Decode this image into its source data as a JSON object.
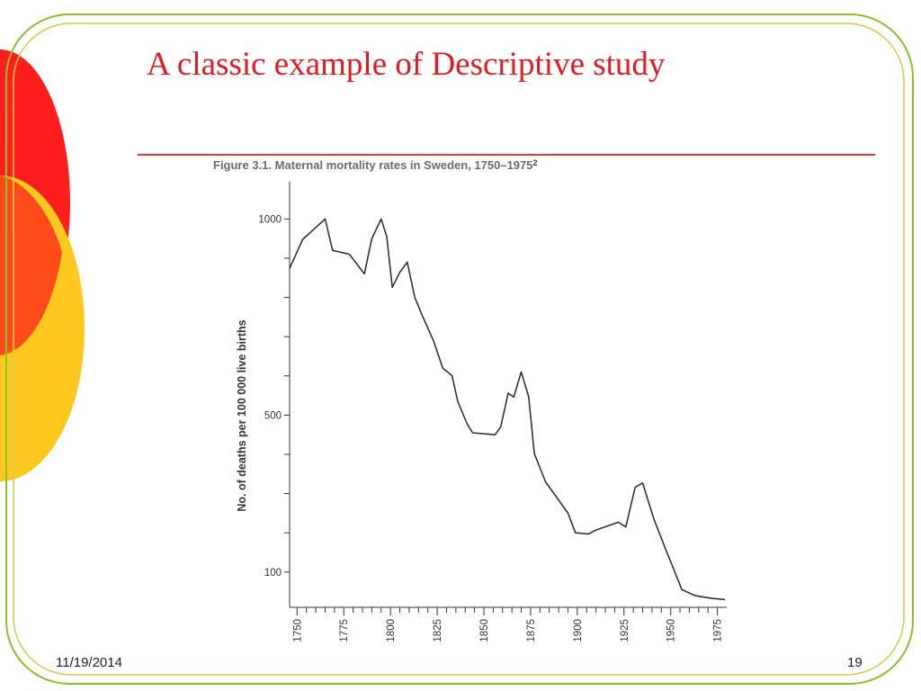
{
  "slide": {
    "title": "A classic example of Descriptive study",
    "date": "11/19/2014",
    "page_number": "19"
  },
  "colors": {
    "title": "#e01b22",
    "rule": "#e03a2a",
    "frame": "#8cbf2e",
    "circle_red": "#ff1e1e",
    "circle_yellow": "#ffc81e",
    "line": "#333333"
  },
  "chart_data": {
    "type": "line",
    "title": "Figure 3.1. Maternal mortality rates in Sweden, 1750–1975",
    "title_superscript": "2",
    "xlabel": "",
    "ylabel": "No. of deaths per 100 000 live births",
    "xlim": [
      1746,
      1980
    ],
    "ylim": [
      10,
      1095
    ],
    "x_tick_labels": [
      "1750",
      "1775",
      "1800",
      "1825",
      "1850",
      "1875",
      "1900",
      "1925",
      "1950",
      "1975"
    ],
    "x_tick_values": [
      1750,
      1775,
      1800,
      1825,
      1850,
      1875,
      1900,
      1925,
      1950,
      1975
    ],
    "y_tick_labels": [
      "1000",
      "500",
      "100"
    ],
    "y_tick_values": [
      1000,
      500,
      100
    ],
    "y_minor_ticks": [
      900,
      800,
      700,
      600,
      400,
      300,
      200
    ],
    "grid": false,
    "series": [
      {
        "x": [
          1746,
          1753,
          1765,
          1769,
          1778,
          1786,
          1790,
          1795,
          1798,
          1801,
          1805,
          1809,
          1813,
          1817,
          1823,
          1828,
          1833,
          1836,
          1841,
          1844,
          1851,
          1856,
          1859,
          1863,
          1866,
          1870,
          1874,
          1877,
          1883,
          1889,
          1895,
          1899,
          1906,
          1910,
          1922,
          1926,
          1931,
          1935,
          1941,
          1948,
          1956,
          1963,
          1969,
          1974,
          1979
        ],
        "y": [
          874,
          948,
          1000,
          920,
          910,
          860,
          950,
          1000,
          955,
          826,
          864,
          890,
          800,
          754,
          690,
          620,
          600,
          535,
          478,
          455,
          452,
          450,
          470,
          556,
          546,
          610,
          547,
          402,
          330,
          290,
          250,
          200,
          197,
          207,
          227,
          215,
          316,
          327,
          235,
          150,
          55,
          40,
          35,
          32,
          30
        ]
      }
    ]
  }
}
